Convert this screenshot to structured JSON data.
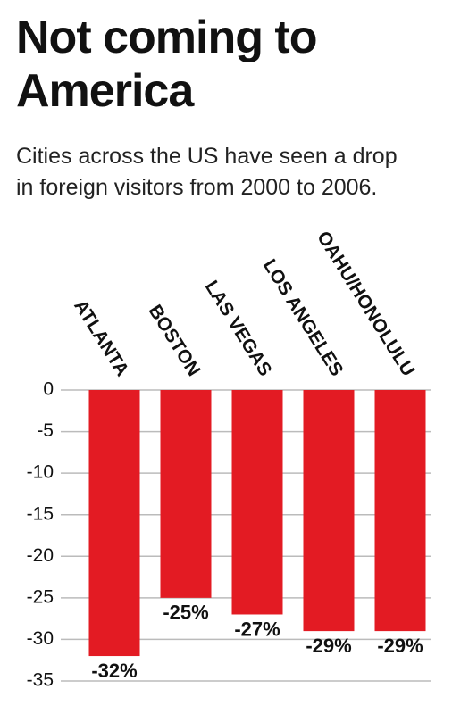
{
  "chart_data": {
    "type": "bar",
    "title": "Not coming to America",
    "subtitle": "Cities across the US have seen a drop in foreign visitors from 2000 to 2006.",
    "categories": [
      "ATLANTA",
      "BOSTON",
      "LAS VEGAS",
      "LOS ANGELES",
      "OAHU/HONOLULU"
    ],
    "values": [
      -32,
      -25,
      -27,
      -29,
      -29
    ],
    "value_labels": [
      "-32%",
      "-25%",
      "-27%",
      "-29%",
      "-29%"
    ],
    "color": "#e31b23",
    "ylim": [
      -35,
      0
    ],
    "yticks": [
      0,
      -5,
      -10,
      -15,
      -20,
      -25,
      -30,
      -35
    ],
    "grid": true
  }
}
